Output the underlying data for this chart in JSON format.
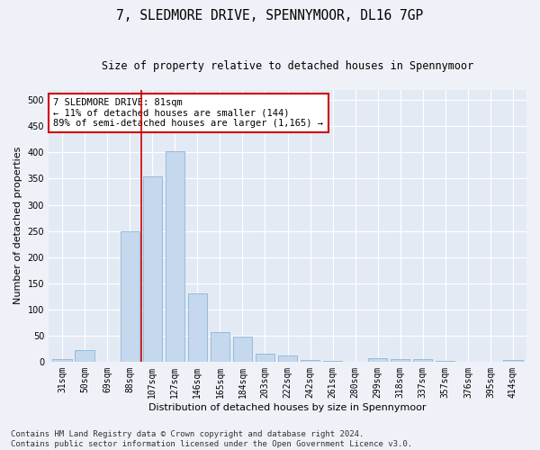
{
  "title": "7, SLEDMORE DRIVE, SPENNYMOOR, DL16 7GP",
  "subtitle": "Size of property relative to detached houses in Spennymoor",
  "xlabel": "Distribution of detached houses by size in Spennymoor",
  "ylabel": "Number of detached properties",
  "categories": [
    "31sqm",
    "50sqm",
    "69sqm",
    "88sqm",
    "107sqm",
    "127sqm",
    "146sqm",
    "165sqm",
    "184sqm",
    "203sqm",
    "222sqm",
    "242sqm",
    "261sqm",
    "280sqm",
    "299sqm",
    "318sqm",
    "337sqm",
    "357sqm",
    "376sqm",
    "395sqm",
    "414sqm"
  ],
  "values": [
    5,
    22,
    0,
    250,
    355,
    403,
    130,
    57,
    48,
    15,
    12,
    4,
    1,
    0,
    6,
    5,
    5,
    1,
    0,
    0,
    3
  ],
  "bar_color": "#c5d8ed",
  "bar_edge_color": "#7aafd4",
  "vline_x": 3.5,
  "vline_color": "#cc0000",
  "annotation_text": "7 SLEDMORE DRIVE: 81sqm\n← 11% of detached houses are smaller (144)\n89% of semi-detached houses are larger (1,165) →",
  "annotation_box_color": "#ffffff",
  "annotation_box_edge": "#cc0000",
  "ylim": [
    0,
    520
  ],
  "yticks": [
    0,
    50,
    100,
    150,
    200,
    250,
    300,
    350,
    400,
    450,
    500
  ],
  "footer_text": "Contains HM Land Registry data © Crown copyright and database right 2024.\nContains public sector information licensed under the Open Government Licence v3.0.",
  "bg_color": "#eef2f8",
  "plot_bg_color": "#e4eaf4",
  "grid_color": "#ffffff",
  "title_fontsize": 10.5,
  "subtitle_fontsize": 8.5,
  "xlabel_fontsize": 8,
  "ylabel_fontsize": 8,
  "tick_fontsize": 7,
  "annot_fontsize": 7.5,
  "footer_fontsize": 6.5
}
